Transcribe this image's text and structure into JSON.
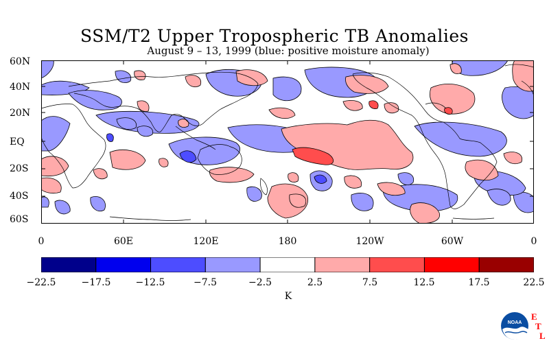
{
  "title": "SSM/T2 Upper Tropospheric TB Anomalies",
  "subtitle": "August 9 – 13, 1999 (blue: positive moisture anomaly)",
  "lat_labels": [
    "60N",
    "40N",
    "20N",
    "EQ",
    "20S",
    "40S",
    "60S"
  ],
  "lon_labels": [
    "0",
    "60E",
    "120E",
    "180",
    "120W",
    "60W",
    "0"
  ],
  "colorbar": {
    "ticks": [
      "−22.5",
      "−17.5",
      "−12.5",
      "−7.5",
      "−2.5",
      "2.5",
      "7.5",
      "12.5",
      "17.5",
      "22.5"
    ],
    "colors": [
      "#00008b",
      "#0000ee",
      "#4d4dff",
      "#9999ff",
      "#ffffff",
      "#ffaaaa",
      "#ff4d4d",
      "#ff0000",
      "#990000"
    ],
    "unit": "K"
  },
  "logo": {
    "text": "NOAA",
    "letters": [
      "E",
      "T",
      "L"
    ]
  }
}
